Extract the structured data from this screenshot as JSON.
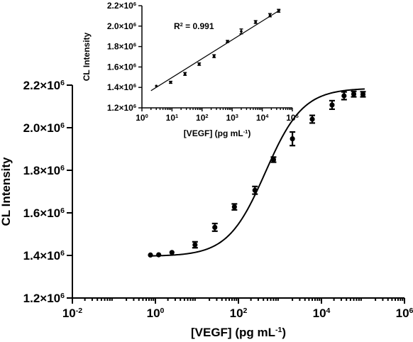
{
  "chart_data": [
    {
      "type": "scatter",
      "role": "main",
      "xscale": "log",
      "xlim": [
        0.01,
        1000000
      ],
      "ylim": [
        1200000,
        2200000
      ],
      "xticks": [
        {
          "value": 0.01,
          "base": "10",
          "exp": "-2"
        },
        {
          "value": 1,
          "base": "10",
          "exp": "0"
        },
        {
          "value": 100,
          "base": "10",
          "exp": "2"
        },
        {
          "value": 10000,
          "base": "10",
          "exp": "4"
        },
        {
          "value": 1000000,
          "base": "10",
          "exp": "6"
        }
      ],
      "yticks": [
        {
          "value": 1200000,
          "mant": "1.2×10",
          "exp": "6"
        },
        {
          "value": 1400000,
          "mant": "1.4×10",
          "exp": "6"
        },
        {
          "value": 1600000,
          "mant": "1.6×10",
          "exp": "6"
        },
        {
          "value": 1800000,
          "mant": "1.8×10",
          "exp": "6"
        },
        {
          "value": 2000000,
          "mant": "2.0×10",
          "exp": "6"
        },
        {
          "value": 2200000,
          "mant": "2.2×10",
          "exp": "6"
        }
      ],
      "xlabel": {
        "pre": "[VEGF] (pg mL",
        "sup": "-1",
        "post": ")"
      },
      "ylabel": "CL Intensity",
      "points": [
        {
          "x": 0.76,
          "y": 1402000,
          "err": 0
        },
        {
          "x": 1.2,
          "y": 1403000,
          "err": 0
        },
        {
          "x": 2.5,
          "y": 1414000,
          "err": 0
        },
        {
          "x": 9,
          "y": 1450000,
          "err": 14000
        },
        {
          "x": 27,
          "y": 1532000,
          "err": 18000
        },
        {
          "x": 80,
          "y": 1628000,
          "err": 14000
        },
        {
          "x": 250,
          "y": 1706000,
          "err": 18000
        },
        {
          "x": 700,
          "y": 1850000,
          "err": 12000
        },
        {
          "x": 2000,
          "y": 1948000,
          "err": 32000
        },
        {
          "x": 6000,
          "y": 2040000,
          "err": 18000
        },
        {
          "x": 18000,
          "y": 2107000,
          "err": 20000
        },
        {
          "x": 35000,
          "y": 2150000,
          "err": 18000
        },
        {
          "x": 60000,
          "y": 2158000,
          "err": 13000
        },
        {
          "x": 100000,
          "y": 2157000,
          "err": 12000
        }
      ],
      "fit": {
        "bottom": 1396000,
        "top": 2186000,
        "logEC50": 2.65,
        "hill": 0.6
      }
    },
    {
      "type": "scatter",
      "role": "inset",
      "xscale": "log",
      "xlim": [
        1,
        100000
      ],
      "ylim": [
        1200000,
        2200000
      ],
      "xticks": [
        {
          "value": 1,
          "base": "10",
          "exp": "0"
        },
        {
          "value": 10,
          "base": "10",
          "exp": "1"
        },
        {
          "value": 100,
          "base": "10",
          "exp": "2"
        },
        {
          "value": 1000,
          "base": "10",
          "exp": "3"
        },
        {
          "value": 10000,
          "base": "10",
          "exp": "4"
        },
        {
          "value": 100000,
          "base": "10",
          "exp": "5"
        }
      ],
      "yticks": [
        {
          "value": 1400000,
          "mant": "1.4×10",
          "exp": "6"
        },
        {
          "value": 1600000,
          "mant": "1.6×10",
          "exp": "6"
        },
        {
          "value": 1800000,
          "mant": "1.8×10",
          "exp": "6"
        },
        {
          "value": 2000000,
          "mant": "2.0×10",
          "exp": "6"
        },
        {
          "value": 2200000,
          "mant": "2.2×10",
          "exp": "6"
        }
      ],
      "ytick_bottom": {
        "value": 1200000,
        "mant": "1.2×10",
        "exp": "6"
      },
      "xlabel": {
        "pre": "[VEGF] (pg mL",
        "sup": "-1",
        "post": ")"
      },
      "ylabel": "CL Intensity",
      "annotation": {
        "pre": "R",
        "sup": "2",
        "post": " = 0.991"
      },
      "points": [
        {
          "x": 3,
          "y": 1414000,
          "err": 0
        },
        {
          "x": 9,
          "y": 1450000,
          "err": 10000
        },
        {
          "x": 27,
          "y": 1532000,
          "err": 14000
        },
        {
          "x": 80,
          "y": 1628000,
          "err": 12000
        },
        {
          "x": 250,
          "y": 1706000,
          "err": 14000
        },
        {
          "x": 700,
          "y": 1850000,
          "err": 10000
        },
        {
          "x": 2000,
          "y": 1948000,
          "err": 24000
        },
        {
          "x": 6000,
          "y": 2040000,
          "err": 14000
        },
        {
          "x": 18000,
          "y": 2107000,
          "err": 16000
        },
        {
          "x": 35000,
          "y": 2150000,
          "err": 14000
        }
      ],
      "fit_line": {
        "x": [
          2,
          40000
        ],
        "y": [
          1368000,
          2160000
        ]
      }
    }
  ]
}
